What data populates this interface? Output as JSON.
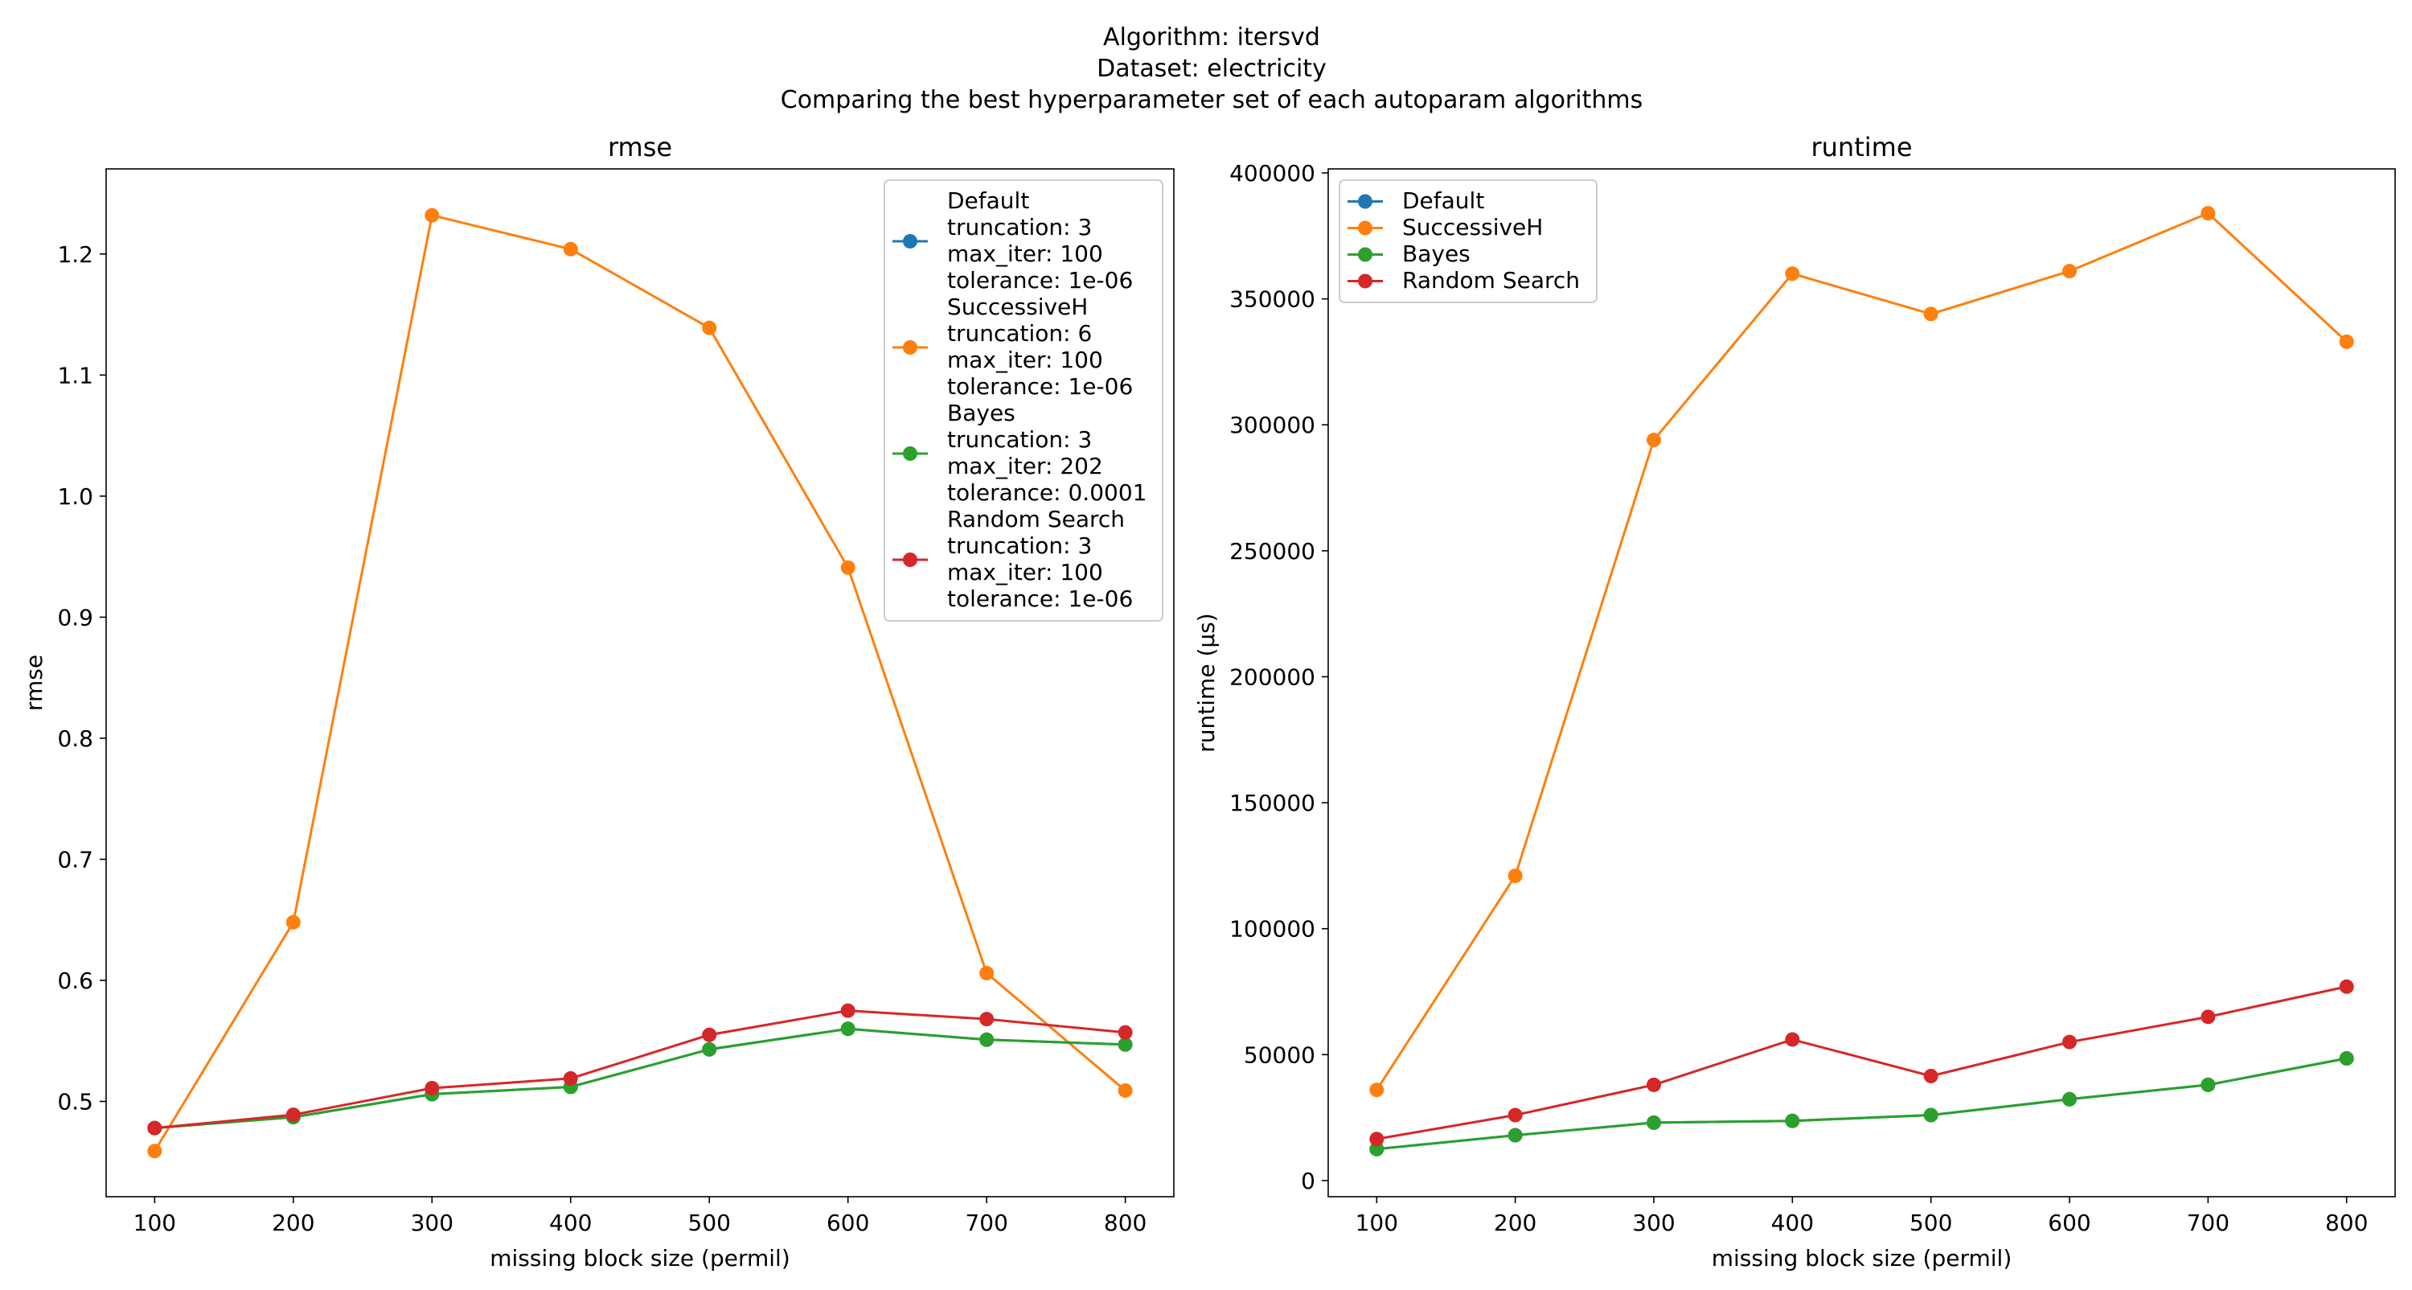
{
  "suptitle": {
    "line1": "Algorithm: itersvd",
    "line2": "Dataset: electricity",
    "line3": "Comparing the best hyperparameter set of each autoparam algorithms"
  },
  "colors": {
    "default": "#1f77b4",
    "successiveh": "#ff7f0e",
    "bayes": "#2ca02c",
    "random": "#d62728"
  },
  "chart_data": [
    {
      "type": "line",
      "title": "rmse",
      "xlabel": "missing block size (permil)",
      "ylabel": "rmse",
      "x": [
        100,
        200,
        300,
        400,
        500,
        600,
        700,
        800
      ],
      "xticks": [
        "100",
        "200",
        "300",
        "400",
        "500",
        "600",
        "700",
        "800"
      ],
      "xlim": [
        65,
        835
      ],
      "yticks": [
        "0.5",
        "0.6",
        "0.7",
        "0.8",
        "0.9",
        "1.0",
        "1.1",
        "1.2"
      ],
      "ytick_values": [
        0.5,
        0.6,
        0.7,
        0.8,
        0.9,
        1.0,
        1.1,
        1.2
      ],
      "ylim": [
        0.4213,
        1.2703
      ],
      "grid": false,
      "legend_position": "top-right",
      "series": [
        {
          "key": "default",
          "name": "Default",
          "legend_lines": [
            "Default",
            "truncation: 3",
            "max_iter: 100",
            "tolerance: 1e-06"
          ],
          "values": [
            0.478,
            0.487,
            0.506,
            0.512,
            0.543,
            0.56,
            0.551,
            0.547
          ]
        },
        {
          "key": "successiveh",
          "name": "SuccessiveH",
          "legend_lines": [
            "SuccessiveH",
            "truncation: 6",
            "max_iter: 100",
            "tolerance: 1e-06"
          ],
          "values": [
            0.459,
            0.648,
            1.232,
            1.204,
            1.139,
            0.941,
            0.606,
            0.509
          ]
        },
        {
          "key": "bayes",
          "name": "Bayes",
          "legend_lines": [
            "Bayes",
            "truncation: 3",
            "max_iter: 202",
            "tolerance: 0.0001"
          ],
          "values": [
            0.478,
            0.487,
            0.506,
            0.512,
            0.543,
            0.56,
            0.551,
            0.547
          ]
        },
        {
          "key": "random",
          "name": "Random Search",
          "legend_lines": [
            "Random Search",
            "truncation: 3",
            "max_iter: 100",
            "tolerance: 1e-06"
          ],
          "values": [
            0.478,
            0.489,
            0.511,
            0.519,
            0.555,
            0.575,
            0.568,
            0.557
          ]
        }
      ]
    },
    {
      "type": "line",
      "title": "runtime",
      "xlabel": "missing block size (permil)",
      "ylabel": "runtime (µs)",
      "x": [
        100,
        200,
        300,
        400,
        500,
        600,
        700,
        800
      ],
      "xticks": [
        "100",
        "200",
        "300",
        "400",
        "500",
        "600",
        "700",
        "800"
      ],
      "xlim": [
        65,
        835
      ],
      "yticks": [
        "0",
        "50000",
        "100000",
        "150000",
        "200000",
        "250000",
        "300000",
        "350000",
        "400000"
      ],
      "ytick_values": [
        0,
        50000,
        100000,
        150000,
        200000,
        250000,
        300000,
        350000,
        400000
      ],
      "ylim": [
        -6400,
        401600
      ],
      "grid": false,
      "legend_position": "top-left",
      "series": [
        {
          "key": "default",
          "name": "Default",
          "legend_lines": [
            "Default"
          ],
          "values": [
            12500,
            18000,
            23000,
            23700,
            26000,
            32300,
            38000,
            48500
          ]
        },
        {
          "key": "successiveh",
          "name": "SuccessiveH",
          "legend_lines": [
            "SuccessiveH"
          ],
          "values": [
            36000,
            121000,
            294000,
            360000,
            344000,
            361000,
            384000,
            333000
          ]
        },
        {
          "key": "bayes",
          "name": "Bayes",
          "legend_lines": [
            "Bayes"
          ],
          "values": [
            12500,
            18000,
            23000,
            23700,
            26000,
            32300,
            38000,
            48500
          ]
        },
        {
          "key": "random",
          "name": "Random Search",
          "legend_lines": [
            "Random Search"
          ],
          "values": [
            16500,
            26000,
            38000,
            56000,
            41500,
            55000,
            65000,
            77000
          ]
        }
      ]
    }
  ]
}
